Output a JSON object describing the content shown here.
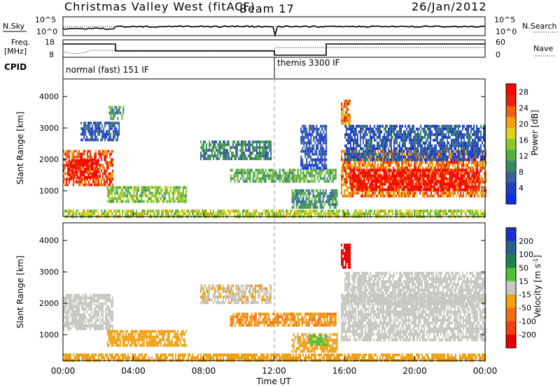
{
  "header": {
    "station": "Christmas Valley West (fitACF)",
    "beam": "Beam 17",
    "date": "26/Jan/2012"
  },
  "top_panels": {
    "nsky_label": "N.Sky",
    "nsky_ticks": [
      "10^5",
      "10^0"
    ],
    "nsearch_label": "N.Search",
    "nsearch_ticks": [
      "10^5",
      "10^0"
    ],
    "freq_label": "Freq.",
    "freq_unit": "[MHz]",
    "freq_ticks": [
      "18",
      "8"
    ],
    "nave_label": "Nave",
    "nave_ticks": [
      "60",
      "0"
    ],
    "cpid_label": "CPID",
    "cpid_segments": [
      {
        "start_h": 0,
        "end_h": 12,
        "label": "normal (fast) 151 IF"
      },
      {
        "start_h": 12,
        "end_h": 24,
        "label": "themis 3300 IF"
      }
    ]
  },
  "chart_data": [
    {
      "type": "heatmap",
      "panel": "power",
      "ylabel": "Slant Range [km]",
      "xlabel": "",
      "xlim": [
        0,
        24
      ],
      "ylim": [
        180,
        4560
      ],
      "yticks": [
        1000,
        2000,
        3000,
        4000
      ],
      "colorbar": {
        "label": "Power [dB]",
        "ticks": [
          4,
          8,
          12,
          16,
          20,
          24,
          28
        ],
        "range": [
          0,
          30
        ],
        "colors": [
          "#1030e0",
          "#2040c0",
          "#3a60a0",
          "#3a8a60",
          "#50b040",
          "#88c830",
          "#e0d020",
          "#f0a010",
          "#f06010",
          "#e82010",
          "#ff0000"
        ]
      },
      "regions": [
        {
          "t0": 0.0,
          "t1": 2.8,
          "r0": 1200,
          "r1": 2300,
          "level": 24
        },
        {
          "t0": 0.3,
          "t1": 2.0,
          "r0": 1450,
          "r1": 2000,
          "level": 28
        },
        {
          "t0": 2.6,
          "t1": 3.4,
          "r0": 3300,
          "r1": 3700,
          "level": 10
        },
        {
          "t0": 1.0,
          "t1": 3.2,
          "r0": 2600,
          "r1": 3200,
          "level": 6
        },
        {
          "t0": 2.5,
          "t1": 7.0,
          "r0": 700,
          "r1": 1150,
          "level": 14
        },
        {
          "t0": 7.8,
          "t1": 11.8,
          "r0": 2050,
          "r1": 2600,
          "level": 9
        },
        {
          "t0": 9.5,
          "t1": 15.5,
          "r0": 1300,
          "r1": 1700,
          "level": 12
        },
        {
          "t0": 13.0,
          "t1": 15.6,
          "r0": 500,
          "r1": 1050,
          "level": 10
        },
        {
          "t0": 13.5,
          "t1": 15.0,
          "r0": 1700,
          "r1": 3100,
          "level": 5
        },
        {
          "t0": 15.8,
          "t1": 24.0,
          "r0": 800,
          "r1": 2300,
          "level": 22
        },
        {
          "t0": 16.3,
          "t1": 23.7,
          "r0": 1000,
          "r1": 1700,
          "level": 28
        },
        {
          "t0": 16.0,
          "t1": 24.0,
          "r0": 2000,
          "r1": 3100,
          "level": 6
        },
        {
          "t0": 15.8,
          "t1": 16.3,
          "r0": 3100,
          "r1": 3900,
          "level": 22
        },
        {
          "t0": 0.0,
          "t1": 24.0,
          "r0": 180,
          "r1": 400,
          "level": 16
        }
      ]
    },
    {
      "type": "heatmap",
      "panel": "velocity",
      "ylabel": "Slant Range [km]",
      "xlabel": "Time UT",
      "xlim": [
        0,
        24
      ],
      "ylim": [
        180,
        4560
      ],
      "yticks": [
        1000,
        2000,
        3000,
        4000
      ],
      "xtick_labels": [
        "00:00",
        "04:00",
        "08:00",
        "12:00",
        "16:00",
        "20:00",
        "00:00"
      ],
      "colorbar": {
        "label": "Velocity [m s-1]",
        "ticks": [
          200,
          100,
          50,
          15,
          -15,
          -50,
          -100,
          -200
        ],
        "range": [
          -250,
          250
        ],
        "colors": [
          "#2030d0",
          "#2a6090",
          "#208050",
          "#50c030",
          "#c8c8c0",
          "#f0a010",
          "#f07010",
          "#f04010",
          "#e80000"
        ]
      },
      "regions": [
        {
          "t0": 0.0,
          "t1": 2.8,
          "r0": 1200,
          "r1": 2300,
          "level": 0
        },
        {
          "t0": 2.5,
          "t1": 7.0,
          "r0": 700,
          "r1": 1150,
          "level": -60
        },
        {
          "t0": 7.8,
          "t1": 11.8,
          "r0": 2050,
          "r1": 2600,
          "level": -20
        },
        {
          "t0": 9.5,
          "t1": 15.5,
          "r0": 1300,
          "r1": 1700,
          "level": -80
        },
        {
          "t0": 13.0,
          "t1": 15.6,
          "r0": 500,
          "r1": 1050,
          "level": -40
        },
        {
          "t0": 14.0,
          "t1": 15.0,
          "r0": 700,
          "r1": 1000,
          "level": 40
        },
        {
          "t0": 15.8,
          "t1": 24.0,
          "r0": 800,
          "r1": 2300,
          "level": 0
        },
        {
          "t0": 16.0,
          "t1": 24.0,
          "r0": 2000,
          "r1": 3000,
          "level": 0
        },
        {
          "t0": 15.8,
          "t1": 16.3,
          "r0": 3100,
          "r1": 3900,
          "level": -220
        },
        {
          "t0": 0.0,
          "t1": 24.0,
          "r0": 180,
          "r1": 400,
          "level": -60
        }
      ]
    }
  ]
}
